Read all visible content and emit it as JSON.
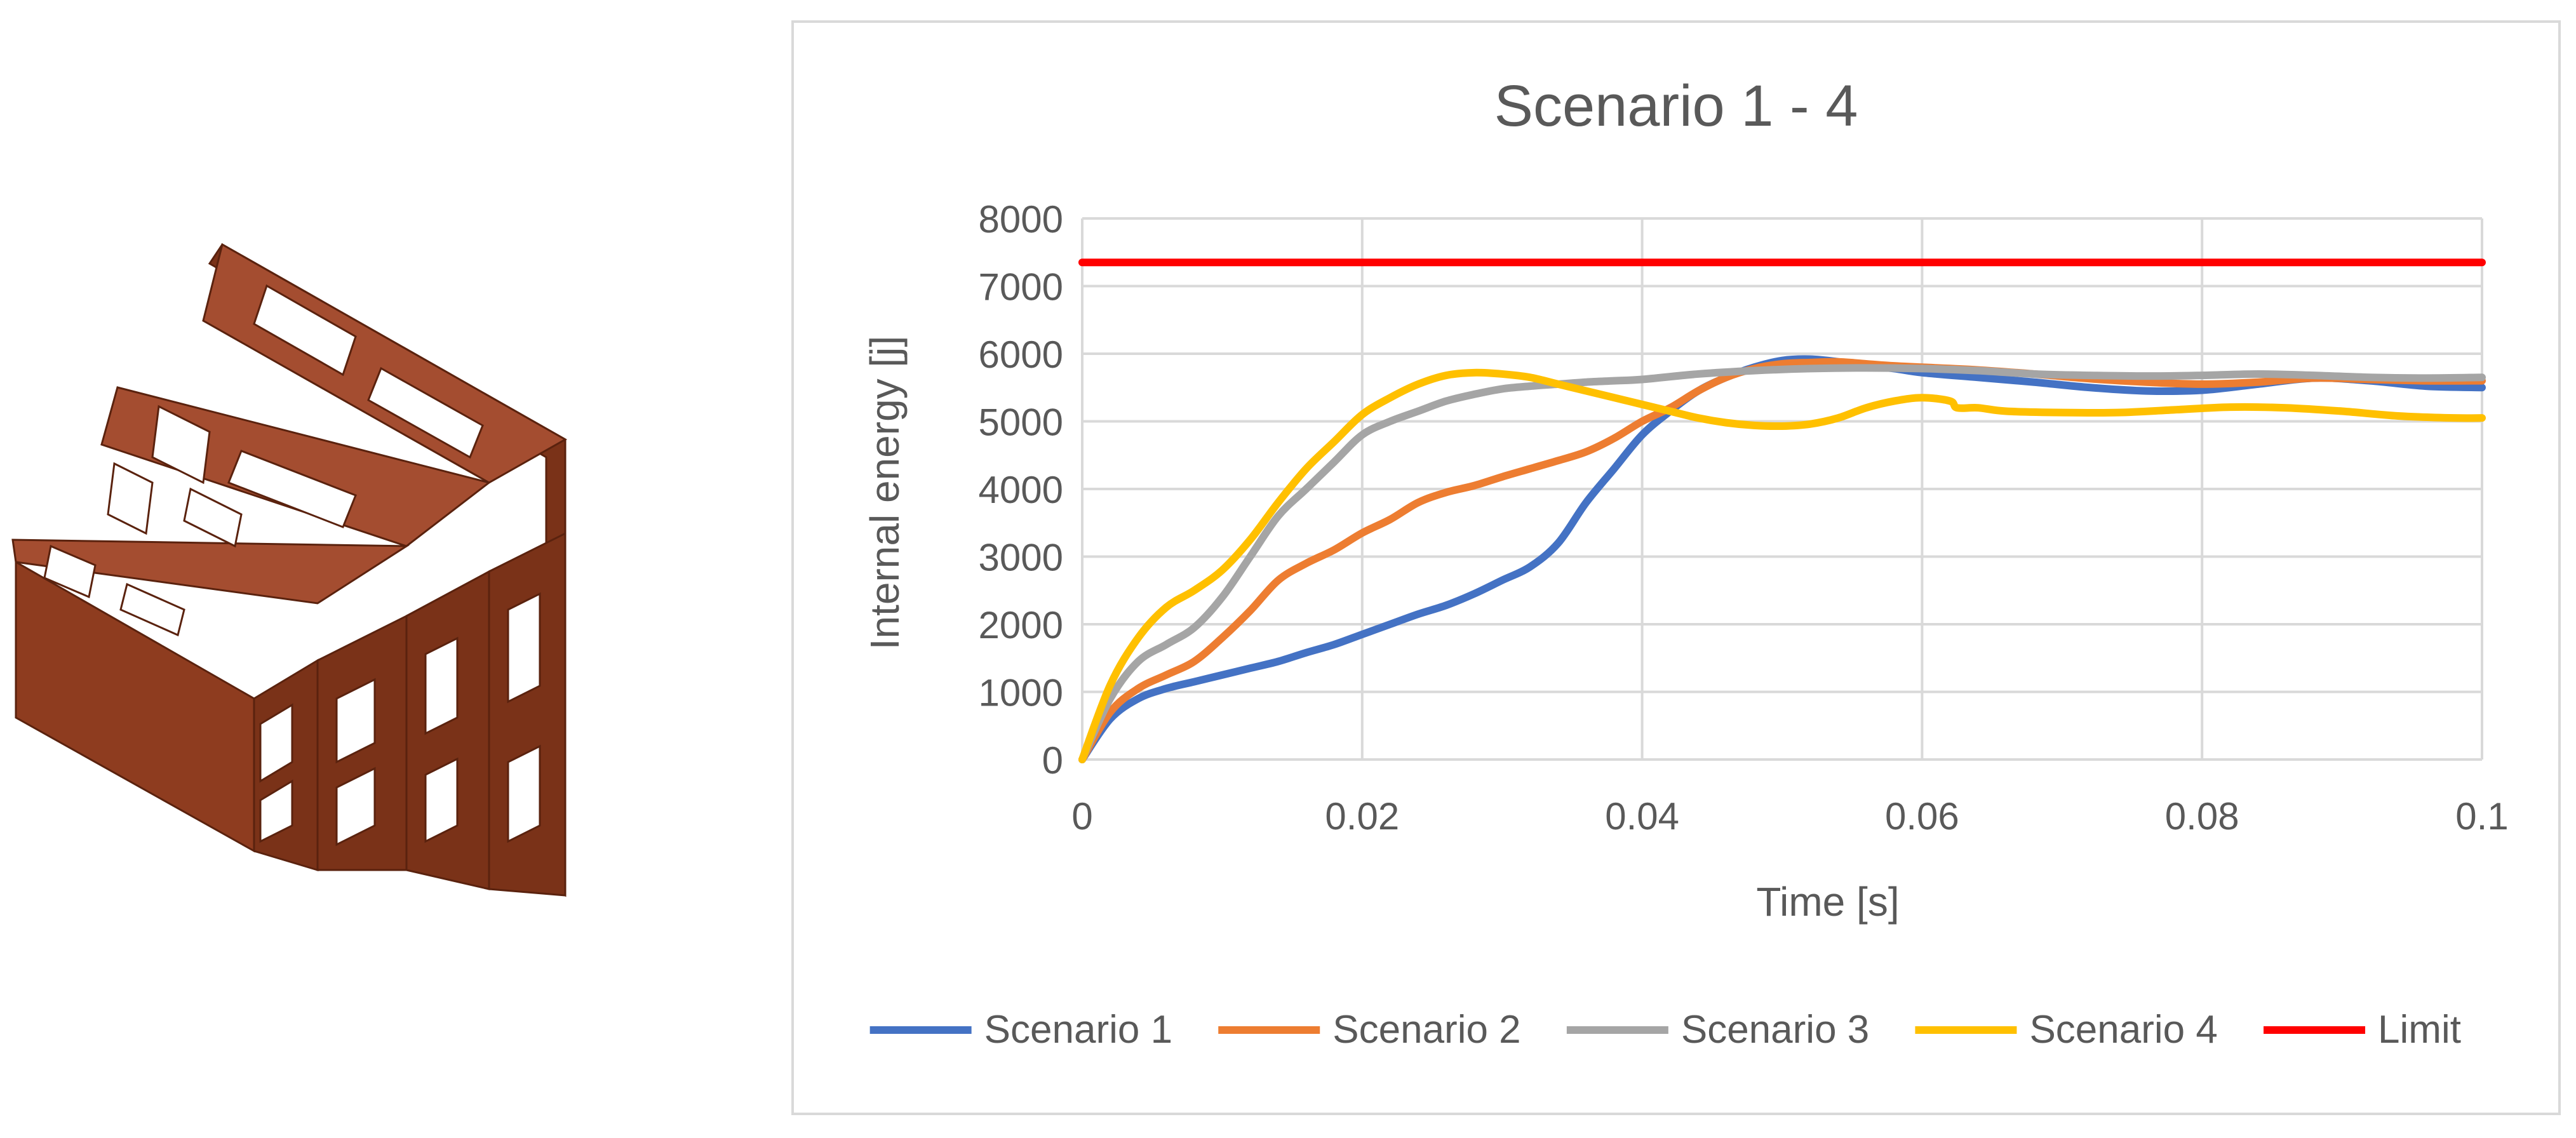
{
  "figure_left": {
    "description_name": "3D model render",
    "colors": {
      "face_top": "#a44d30",
      "face_front": "#8e3c1f",
      "face_side": "#7a3218",
      "edge": "#5a220e"
    }
  },
  "chart_data": {
    "type": "line",
    "title": "Scenario 1 - 4",
    "xlabel": "Time [s]",
    "ylabel": "Internal energy [j]",
    "xlim": [
      0,
      0.1
    ],
    "ylim": [
      0,
      8000
    ],
    "x_ticks": [
      "0",
      "0.02",
      "0.04",
      "0.06",
      "0.08",
      "0.1"
    ],
    "x_tick_values": [
      0,
      0.02,
      0.04,
      0.06,
      0.08,
      0.1
    ],
    "y_ticks": [
      "0",
      "1000",
      "2000",
      "3000",
      "4000",
      "5000",
      "6000",
      "7000",
      "8000"
    ],
    "y_tick_values": [
      0,
      1000,
      2000,
      3000,
      4000,
      5000,
      6000,
      7000,
      8000
    ],
    "grid": true,
    "legend_position": "bottom",
    "series": [
      {
        "name": "Scenario 1",
        "color": "#4472c4",
        "x": [
          0,
          0.002,
          0.004,
          0.006,
          0.008,
          0.01,
          0.012,
          0.014,
          0.016,
          0.018,
          0.02,
          0.022,
          0.024,
          0.026,
          0.028,
          0.03,
          0.032,
          0.034,
          0.036,
          0.038,
          0.04,
          0.042,
          0.044,
          0.046,
          0.048,
          0.05,
          0.052,
          0.054,
          0.056,
          0.058,
          0.06,
          0.064,
          0.068,
          0.072,
          0.076,
          0.08,
          0.084,
          0.088,
          0.092,
          0.096,
          0.1
        ],
        "y": [
          0,
          600,
          900,
          1050,
          1150,
          1250,
          1350,
          1450,
          1580,
          1700,
          1850,
          2000,
          2150,
          2280,
          2450,
          2650,
          2850,
          3200,
          3800,
          4300,
          4800,
          5150,
          5450,
          5650,
          5800,
          5900,
          5920,
          5880,
          5820,
          5780,
          5720,
          5650,
          5580,
          5500,
          5450,
          5460,
          5550,
          5640,
          5600,
          5520,
          5500
        ]
      },
      {
        "name": "Scenario 2",
        "color": "#ed7d31",
        "x": [
          0,
          0.002,
          0.004,
          0.006,
          0.008,
          0.01,
          0.012,
          0.014,
          0.016,
          0.018,
          0.02,
          0.022,
          0.024,
          0.026,
          0.028,
          0.03,
          0.032,
          0.034,
          0.036,
          0.038,
          0.04,
          0.042,
          0.044,
          0.046,
          0.048,
          0.05,
          0.052,
          0.054,
          0.056,
          0.058,
          0.06,
          0.064,
          0.068,
          0.072,
          0.076,
          0.08,
          0.084,
          0.088,
          0.092,
          0.096,
          0.1
        ],
        "y": [
          0,
          700,
          1050,
          1250,
          1450,
          1800,
          2200,
          2650,
          2900,
          3100,
          3350,
          3550,
          3800,
          3950,
          4050,
          4180,
          4300,
          4420,
          4550,
          4750,
          5000,
          5200,
          5450,
          5650,
          5780,
          5850,
          5870,
          5880,
          5850,
          5820,
          5800,
          5760,
          5700,
          5630,
          5580,
          5550,
          5580,
          5640,
          5620,
          5600,
          5600
        ]
      },
      {
        "name": "Scenario 3",
        "color": "#a5a5a5",
        "x": [
          0,
          0.002,
          0.004,
          0.006,
          0.008,
          0.01,
          0.012,
          0.014,
          0.016,
          0.018,
          0.02,
          0.022,
          0.024,
          0.026,
          0.028,
          0.03,
          0.032,
          0.034,
          0.036,
          0.038,
          0.04,
          0.044,
          0.048,
          0.052,
          0.056,
          0.06,
          0.064,
          0.068,
          0.072,
          0.076,
          0.08,
          0.084,
          0.088,
          0.092,
          0.096,
          0.1
        ],
        "y": [
          0,
          900,
          1450,
          1700,
          1950,
          2400,
          3000,
          3600,
          4000,
          4400,
          4800,
          5000,
          5150,
          5300,
          5400,
          5480,
          5520,
          5550,
          5580,
          5600,
          5620,
          5700,
          5750,
          5780,
          5790,
          5780,
          5750,
          5700,
          5680,
          5670,
          5680,
          5700,
          5680,
          5650,
          5640,
          5650
        ]
      },
      {
        "name": "Scenario 4",
        "color": "#ffc000",
        "x": [
          0,
          0.002,
          0.004,
          0.006,
          0.008,
          0.01,
          0.012,
          0.014,
          0.016,
          0.018,
          0.02,
          0.022,
          0.024,
          0.026,
          0.028,
          0.03,
          0.032,
          0.034,
          0.036,
          0.038,
          0.04,
          0.042,
          0.044,
          0.046,
          0.048,
          0.05,
          0.052,
          0.054,
          0.056,
          0.058,
          0.06,
          0.062,
          0.0625,
          0.064,
          0.066,
          0.07,
          0.074,
          0.078,
          0.082,
          0.086,
          0.09,
          0.094,
          0.098,
          0.1
        ],
        "y": [
          0,
          1100,
          1800,
          2250,
          2500,
          2800,
          3250,
          3800,
          4300,
          4700,
          5100,
          5350,
          5550,
          5680,
          5720,
          5700,
          5650,
          5550,
          5450,
          5350,
          5250,
          5150,
          5050,
          4980,
          4940,
          4930,
          4960,
          5050,
          5200,
          5300,
          5350,
          5300,
          5200,
          5200,
          5150,
          5130,
          5130,
          5170,
          5210,
          5200,
          5150,
          5080,
          5050,
          5050
        ]
      },
      {
        "name": "Limit",
        "color": "#ff0000",
        "x": [
          0,
          0.1
        ],
        "y": [
          7350,
          7350
        ]
      }
    ]
  }
}
